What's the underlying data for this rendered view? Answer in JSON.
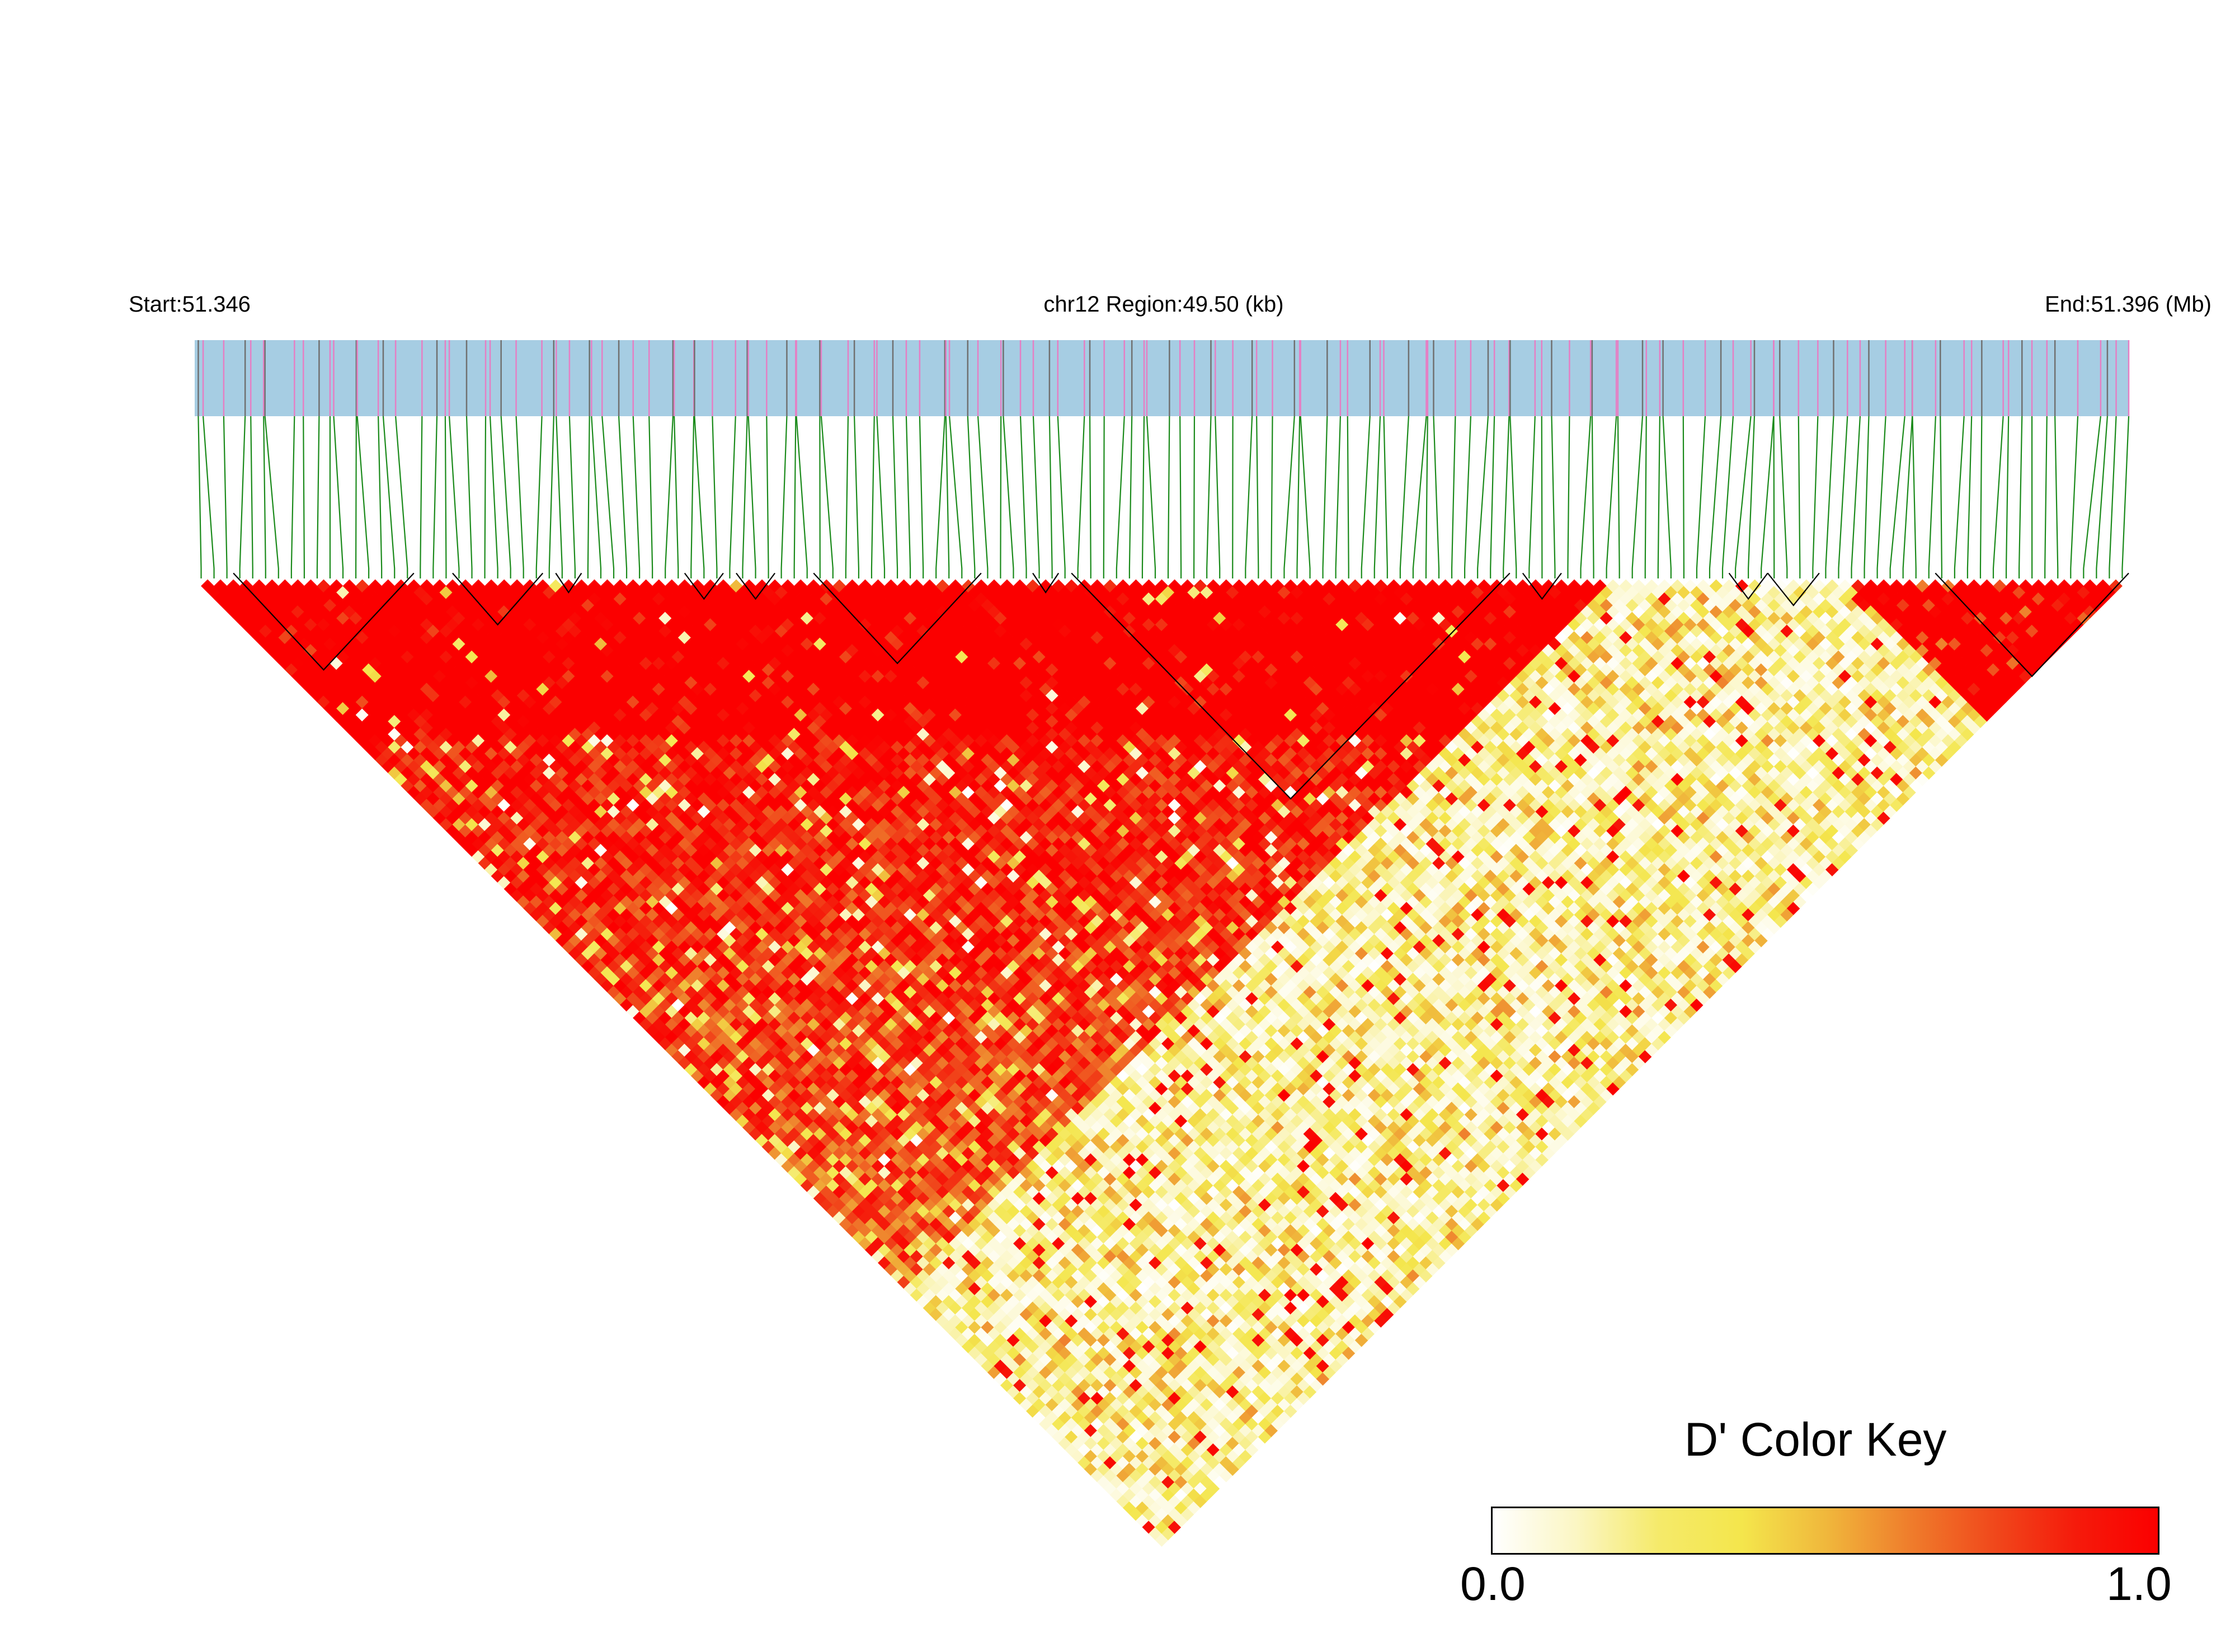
{
  "chart_data": {
    "type": "heatmap",
    "subtype": "linkage-disequilibrium-triangle",
    "header": {
      "start_label": "Start:51.346",
      "region_label": "chr12 Region:49.50 (kb)",
      "end_label": "End:51.396 (Mb)"
    },
    "region": {
      "chromosome": "chr12",
      "start_mb": 51.346,
      "end_mb": 51.396,
      "length_kb": 49.5
    },
    "snp_count": 150,
    "measure": "D'",
    "value_range": [
      0.0,
      1.0
    ],
    "ld_structure": {
      "high_ld_region_snps": [
        0,
        110
      ],
      "secondary_high_ld_region_snps": [
        128,
        149
      ],
      "low_ld_region_snps": [
        110,
        128
      ],
      "haplotype_blocks_snps": [
        [
          3,
          16
        ],
        [
          20,
          26
        ],
        [
          28,
          29
        ],
        [
          38,
          40
        ],
        [
          42,
          44
        ],
        [
          48,
          60
        ],
        [
          65,
          66
        ],
        [
          68,
          101
        ],
        [
          103,
          105
        ],
        [
          119,
          121
        ],
        [
          122,
          125
        ],
        [
          135,
          149
        ]
      ]
    },
    "legend": {
      "title": "D' Color Key",
      "min_label": "0.0",
      "max_label": "1.0",
      "colors": [
        "#ffffff",
        "#fbf6c4",
        "#f5ea6a",
        "#f4e64c",
        "#f0b83c",
        "#ef7e2c",
        "#f04a1c",
        "#f51b0b",
        "#fb0000"
      ]
    },
    "colors": {
      "gene_bar": "#a6cde3",
      "snp_tick_dark": "#707070",
      "snp_tick_pink": "#e57fc4",
      "connector_lines": "#1a8a1a",
      "block_outline": "#000000"
    }
  }
}
